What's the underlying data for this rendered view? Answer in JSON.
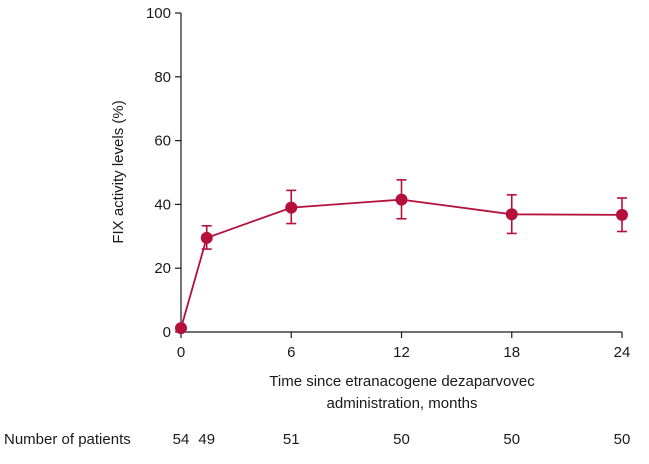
{
  "chart_data": {
    "type": "line",
    "xlabel_line1": "Time since etranacogene dezaparvovec",
    "xlabel_line2": "administration, months",
    "ylabel": "FIX activity levels (%)",
    "xlim": [
      0,
      24
    ],
    "ylim": [
      0,
      100
    ],
    "x_ticks": [
      0,
      6,
      12,
      18,
      24
    ],
    "y_ticks": [
      0,
      20,
      40,
      60,
      80,
      100
    ],
    "grid": false,
    "series_color": "#b5103c",
    "series": [
      {
        "points": [
          {
            "x": 0,
            "y": 1.2,
            "lower": 1.2,
            "upper": 1.2,
            "error_bar": false
          },
          {
            "x": 1.4,
            "y": 29.5,
            "lower": 26.0,
            "upper": 33.3,
            "error_bar": true
          },
          {
            "x": 6,
            "y": 39.0,
            "lower": 34.0,
            "upper": 44.4,
            "error_bar": true
          },
          {
            "x": 12,
            "y": 41.5,
            "lower": 35.5,
            "upper": 47.7,
            "error_bar": true
          },
          {
            "x": 18,
            "y": 36.9,
            "lower": 30.9,
            "upper": 43.0,
            "error_bar": true
          },
          {
            "x": 24,
            "y": 36.7,
            "lower": 31.5,
            "upper": 42.0,
            "error_bar": true
          }
        ]
      }
    ],
    "patients_row": {
      "label": "Number of patients",
      "counts": [
        {
          "x": 0,
          "value": "54"
        },
        {
          "x": 1.4,
          "value": "49"
        },
        {
          "x": 6,
          "value": "51"
        },
        {
          "x": 12,
          "value": "50"
        },
        {
          "x": 18,
          "value": "50"
        },
        {
          "x": 24,
          "value": "50"
        }
      ]
    }
  }
}
